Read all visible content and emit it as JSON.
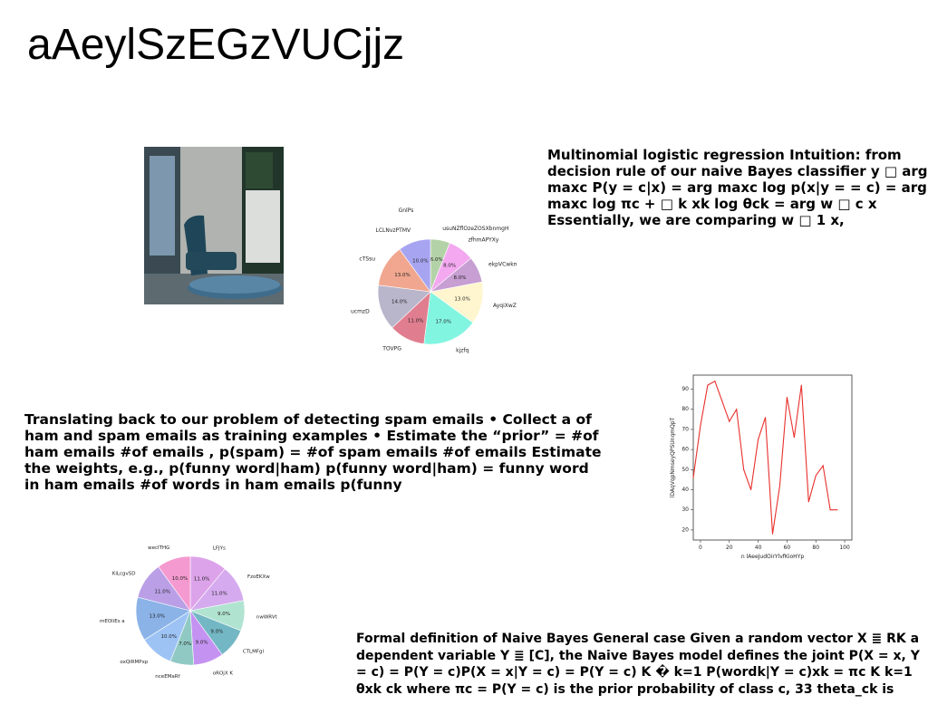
{
  "slide": {
    "title": "aAeylSzEGzVUCjjz",
    "text_1": "Multinomial logistic regression Intuition: from decision rule of our naive Bayes classifier y □ arg maxc P(y = c|x) = arg maxc log p(x|y = = c) = arg maxc log πc + □ k xk log θck = arg w □ c x Essentially, we are comparing w □ 1 x,",
    "text_2": "Translating back to our problem of detecting spam emails • Collect a of ham and spam emails as training examples • Estimate the “prior” = #of ham emails #of emails , p(spam) = #of spam emails #of emails Estimate the weights, e.g., p(funny word|ham) p(funny word|ham) = funny word in ham emails #of words in ham emails p(funny",
    "text_3": "Formal definition of Naive Bayes General case Given a random vector X ≣ RK a dependent variable Y ≣ [C], the Naive Bayes model defines the joint P(X = x, Y = c) = P(Y = c)P(X = x|Y = c) = P(Y = c) K � k=1 P(wordk|Y = c)xk = πc K k=1 θxk ck where πc = P(Y = c) is the prior probability of class c, 33 theta_ck is"
  },
  "chart_data": [
    {
      "type": "pie",
      "slices": [
        {
          "label": "usuNZflOzeZOSXbnmgH",
          "value": 6.0,
          "color": "#b4d2a8"
        },
        {
          "label": "zfhmAPYXy",
          "value": 8.0,
          "color": "#f3a8f0"
        },
        {
          "label": "ekpVCwkm",
          "value": 8.0,
          "color": "#c79fd3"
        },
        {
          "label": "AyqiXwZU",
          "value": 13.0,
          "color": "#fff6cf"
        },
        {
          "label": "kjzfq",
          "value": 17.0,
          "color": "#82f5e1"
        },
        {
          "label": "TOVPG",
          "value": 11.0,
          "color": "#e07e8f"
        },
        {
          "label": "ucmzD",
          "value": 14.0,
          "color": "#b9b5cb"
        },
        {
          "label": "cTSsu",
          "value": 13.0,
          "color": "#f1a78f"
        },
        {
          "label": "LCLNvzPTMV",
          "value": 10.0,
          "color": "#a7a5f1"
        }
      ],
      "extra_label": "GnlPs"
    },
    {
      "type": "line",
      "xlabel": "n lAeeJudOirYlvfKioHYp",
      "ylabel": "lDAqVqpNmseyQPSUnqmQpT",
      "xlim": [
        -5,
        105
      ],
      "ylim": [
        15,
        97
      ],
      "xticks": [
        0,
        20,
        40,
        60,
        80,
        100
      ],
      "yticks": [
        20,
        30,
        40,
        50,
        60,
        70,
        80,
        90
      ],
      "color": "#e8302c",
      "x": [
        -5,
        0,
        5,
        10,
        15,
        20,
        25,
        30,
        35,
        40,
        45,
        50,
        55,
        60,
        65,
        70,
        75,
        80,
        85,
        90,
        95
      ],
      "y": [
        46,
        72,
        92,
        94,
        84,
        74,
        80,
        50,
        40,
        65,
        76,
        18,
        42,
        86,
        66,
        92,
        34,
        47,
        52,
        30,
        30
      ]
    },
    {
      "type": "pie",
      "slices": [
        {
          "label": "LFJYs",
          "value": 11.0,
          "color": "#dda3ea"
        },
        {
          "label": "FzoEKXw",
          "value": 11.0,
          "color": "#d5aaee"
        },
        {
          "label": "nwWRVt",
          "value": 9.0,
          "color": "#b1e3d1"
        },
        {
          "label": "CTLMFgl",
          "value": 9.0,
          "color": "#73b7c4"
        },
        {
          "label": "oROjX K",
          "value": 9.0,
          "color": "#c493f2"
        },
        {
          "label": "nceEMaRf",
          "value": 7.0,
          "color": "#90c9c3"
        },
        {
          "label": "oxQlRMPxp",
          "value": 10.0,
          "color": "#9dc3f5"
        },
        {
          "label": "mEOliEs a",
          "value": 13.0,
          "color": "#8bb3e8"
        },
        {
          "label": "KiLcgvSD",
          "value": 11.0,
          "color": "#ba9fe6"
        },
        {
          "label": "wecITHG",
          "value": 10.0,
          "color": "#f59ad0"
        }
      ]
    }
  ]
}
